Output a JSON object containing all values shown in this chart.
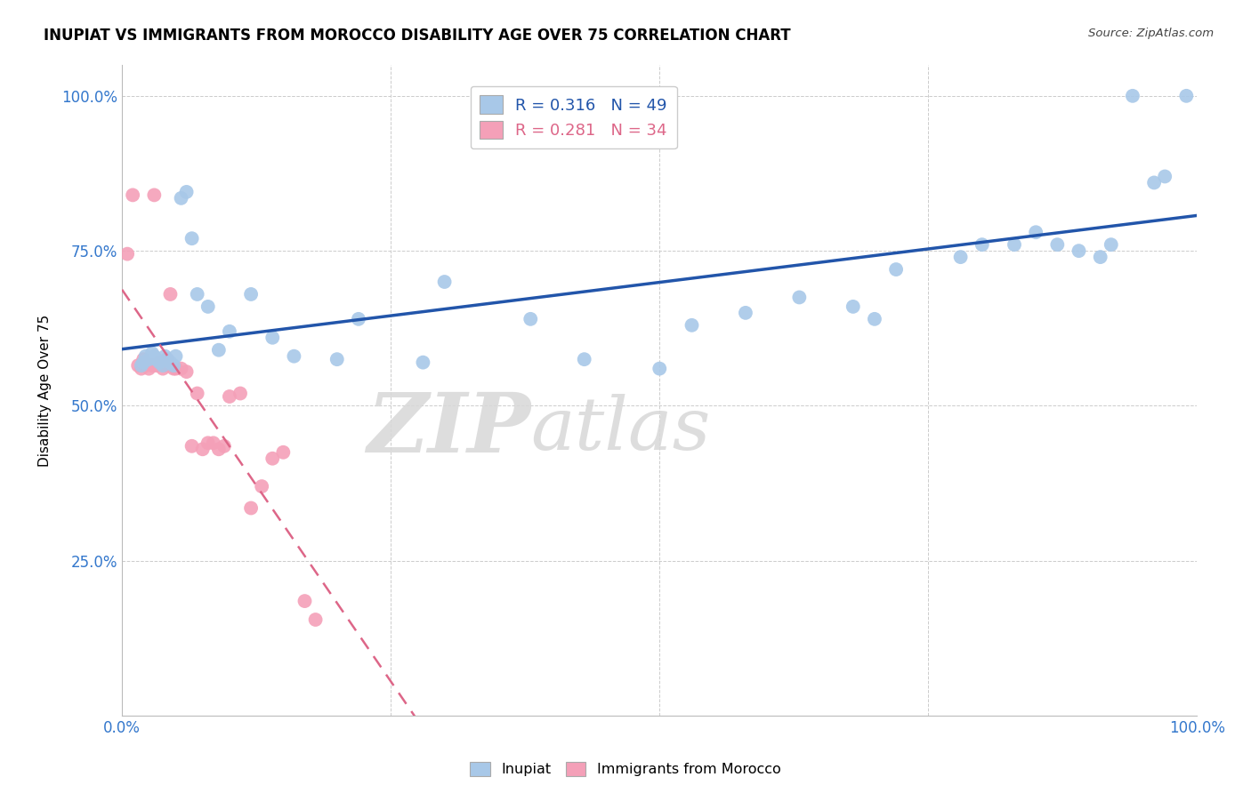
{
  "title": "INUPIAT VS IMMIGRANTS FROM MOROCCO DISABILITY AGE OVER 75 CORRELATION CHART",
  "source": "Source: ZipAtlas.com",
  "ylabel": "Disability Age Over 75",
  "inupiat_r": 0.316,
  "inupiat_n": 49,
  "morocco_r": 0.281,
  "morocco_n": 34,
  "inupiat_color": "#a8c8e8",
  "morocco_color": "#f4a0b8",
  "inupiat_line_color": "#2255aa",
  "morocco_line_color": "#dd6688",
  "watermark_zip": "ZIP",
  "watermark_atlas": "atlas",
  "inupiat_x": [
    0.018,
    0.02,
    0.022,
    0.025,
    0.028,
    0.03,
    0.032,
    0.035,
    0.038,
    0.04,
    0.042,
    0.045,
    0.048,
    0.05,
    0.055,
    0.06,
    0.065,
    0.07,
    0.08,
    0.09,
    0.1,
    0.12,
    0.14,
    0.16,
    0.2,
    0.22,
    0.28,
    0.3,
    0.38,
    0.43,
    0.5,
    0.53,
    0.58,
    0.63,
    0.68,
    0.7,
    0.72,
    0.78,
    0.8,
    0.83,
    0.85,
    0.87,
    0.89,
    0.91,
    0.92,
    0.94,
    0.96,
    0.97,
    0.99
  ],
  "inupiat_y": [
    0.565,
    0.57,
    0.58,
    0.575,
    0.585,
    0.58,
    0.575,
    0.57,
    0.565,
    0.58,
    0.575,
    0.57,
    0.565,
    0.58,
    0.835,
    0.845,
    0.77,
    0.68,
    0.66,
    0.59,
    0.62,
    0.68,
    0.61,
    0.58,
    0.575,
    0.64,
    0.57,
    0.7,
    0.64,
    0.575,
    0.56,
    0.63,
    0.65,
    0.675,
    0.66,
    0.64,
    0.72,
    0.74,
    0.76,
    0.76,
    0.78,
    0.76,
    0.75,
    0.74,
    0.76,
    1.0,
    0.86,
    0.87,
    1.0
  ],
  "morocco_x": [
    0.005,
    0.01,
    0.015,
    0.018,
    0.02,
    0.022,
    0.025,
    0.028,
    0.03,
    0.032,
    0.035,
    0.038,
    0.04,
    0.042,
    0.045,
    0.048,
    0.05,
    0.055,
    0.06,
    0.065,
    0.07,
    0.075,
    0.08,
    0.085,
    0.09,
    0.095,
    0.1,
    0.11,
    0.12,
    0.13,
    0.14,
    0.15,
    0.17,
    0.18
  ],
  "morocco_y": [
    0.745,
    0.84,
    0.565,
    0.56,
    0.575,
    0.565,
    0.56,
    0.565,
    0.84,
    0.565,
    0.57,
    0.56,
    0.565,
    0.575,
    0.68,
    0.56,
    0.56,
    0.56,
    0.555,
    0.435,
    0.52,
    0.43,
    0.44,
    0.44,
    0.43,
    0.435,
    0.515,
    0.52,
    0.335,
    0.37,
    0.415,
    0.425,
    0.185,
    0.155
  ],
  "xlim": [
    0,
    1.0
  ],
  "ylim": [
    0,
    1.05
  ],
  "xticks": [
    0.0,
    0.25,
    0.5,
    0.75,
    1.0
  ],
  "yticks": [
    0.25,
    0.5,
    0.75,
    1.0
  ],
  "xticklabels": [
    "0.0%",
    "",
    "",
    "",
    "100.0%"
  ],
  "yticklabels": [
    "25.0%",
    "50.0%",
    "75.0%",
    "100.0%"
  ]
}
